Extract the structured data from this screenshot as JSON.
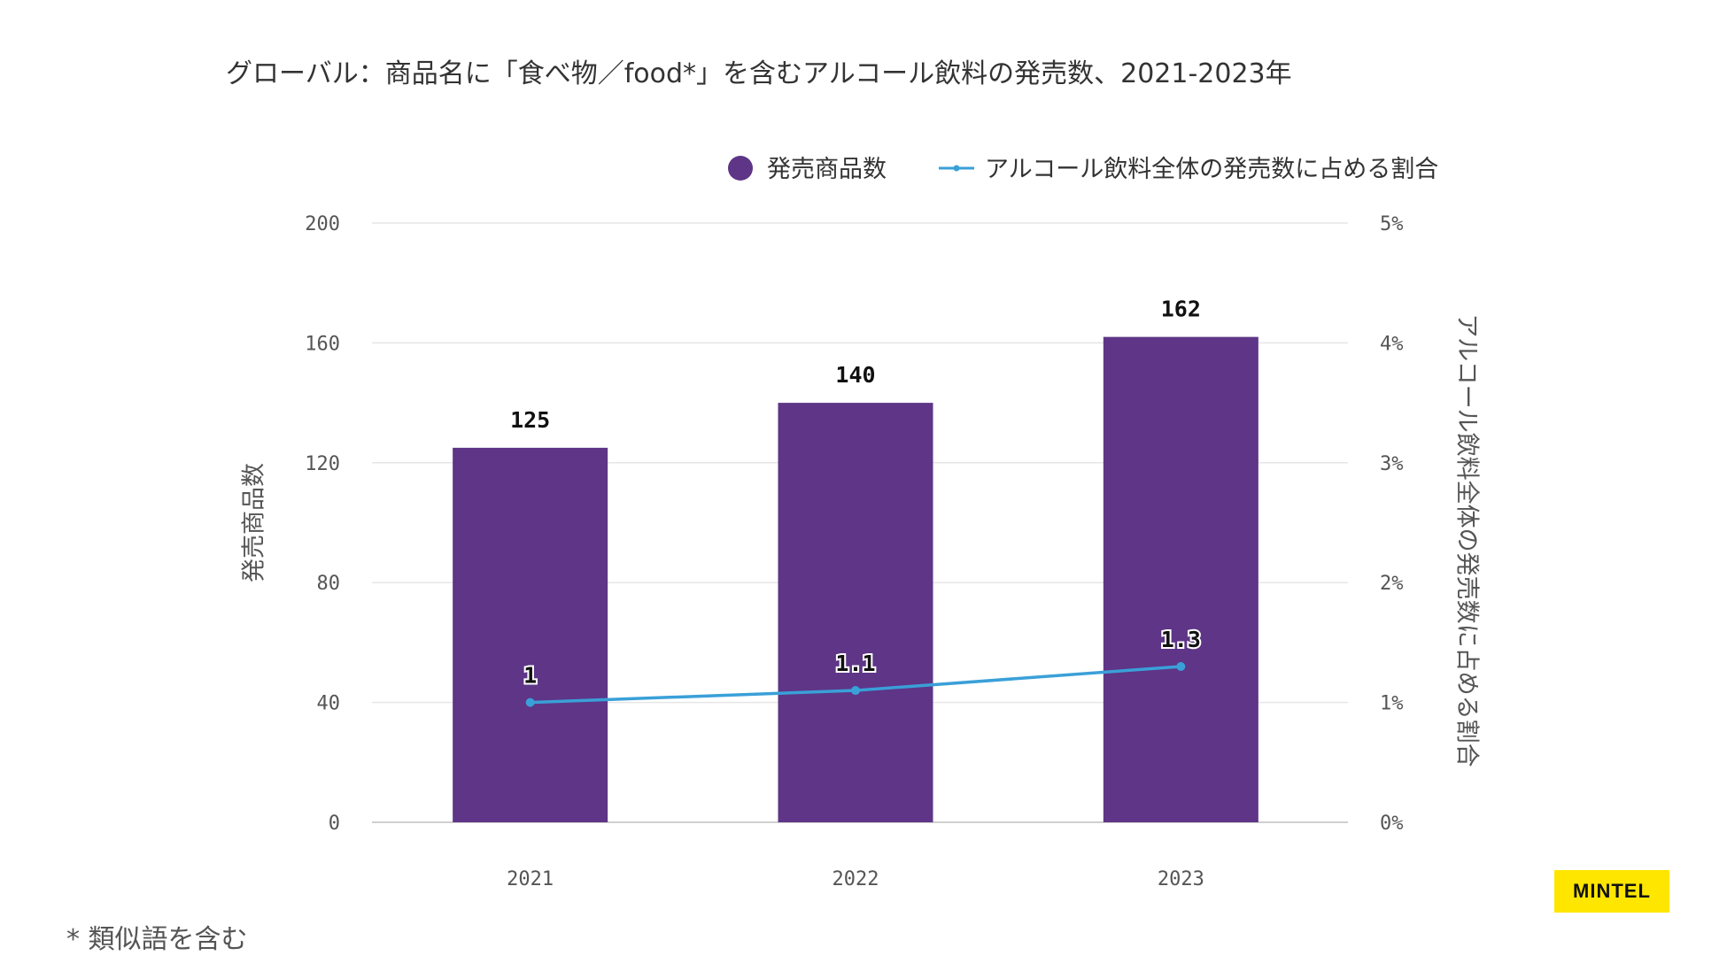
{
  "chart_data": {
    "type": "bar",
    "title": "グローバル：商品名に「食べ物／food*」を含むアルコール飲料の発売数、2021-2023年",
    "categories": [
      "2021",
      "2022",
      "2023"
    ],
    "series": [
      {
        "name": "発売商品数",
        "type": "bar",
        "axis": "left",
        "values": [
          125,
          140,
          162
        ],
        "labels": [
          "125",
          "140",
          "162"
        ],
        "color": "#5e3587"
      },
      {
        "name": "アルコール飲料全体の発売数に占める割合",
        "type": "line",
        "axis": "right",
        "values": [
          1.0,
          1.1,
          1.3
        ],
        "labels": [
          "1",
          "1.1",
          "1.3"
        ],
        "color": "#3aa0d8"
      }
    ],
    "ylabel": "発売商品数",
    "y2label": "アルコール飲料全体の発売数に占める割合",
    "ylim": [
      0,
      200
    ],
    "y2lim": [
      0,
      5
    ],
    "yticks": [
      "0",
      "40",
      "80",
      "120",
      "160",
      "200"
    ],
    "y2ticks": [
      "0%",
      "1%",
      "2%",
      "3%",
      "4%",
      "5%"
    ],
    "grid": true,
    "legend_position": "top-right"
  },
  "footnote": "* 類似語を含む",
  "logo_text": "MINTEL"
}
